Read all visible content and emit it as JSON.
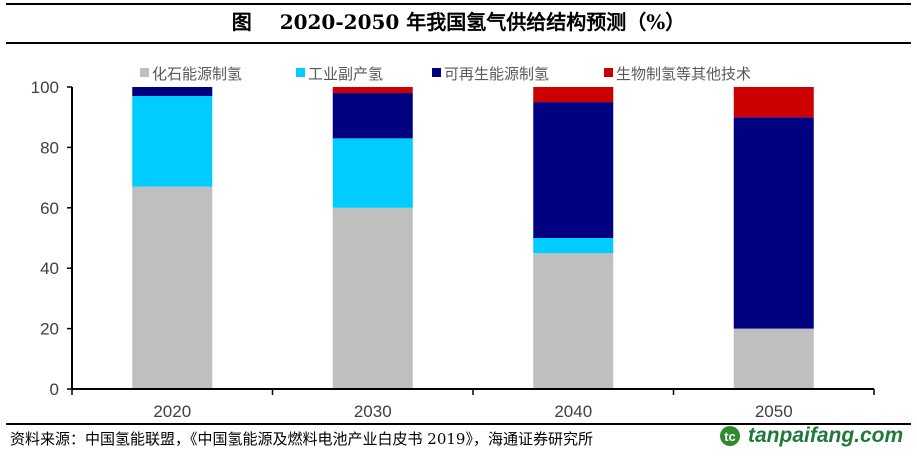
{
  "header": {
    "figure_label": "图",
    "title": "2020-2050 年我国氢气供给结构预测（%）"
  },
  "chart_data": {
    "type": "bar",
    "stacked": true,
    "title": "2020-2050 年我国氢气供给结构预测（%）",
    "xlabel": "",
    "ylabel": "",
    "categories": [
      "2020",
      "2030",
      "2040",
      "2050"
    ],
    "ylim": [
      0,
      100
    ],
    "yticks": [
      0,
      20,
      40,
      60,
      80,
      100
    ],
    "ytick_labels": [
      "0",
      "20",
      "40",
      "60",
      "80",
      "100"
    ],
    "grid": false,
    "legend_position": "top",
    "series": [
      {
        "name": "化石能源制氢",
        "color": "#bfbfbf",
        "values": [
          67,
          60,
          45,
          20
        ]
      },
      {
        "name": "工业副产氢",
        "color": "#00ccff",
        "values": [
          30,
          23,
          5,
          0
        ]
      },
      {
        "name": "可再生能源制氢",
        "color": "#000080",
        "values": [
          3,
          15,
          45,
          70
        ]
      },
      {
        "name": "生物制氢等其他技术",
        "color": "#cc0000",
        "values": [
          0,
          2,
          5,
          10
        ]
      }
    ]
  },
  "footer": {
    "source": "资料来源：中国氢能联盟，《中国氢能源及燃料电池产业白皮书 2019》，海通证券研究所",
    "watermark_logo": "tc",
    "watermark_text": "tanpaifang.com"
  }
}
